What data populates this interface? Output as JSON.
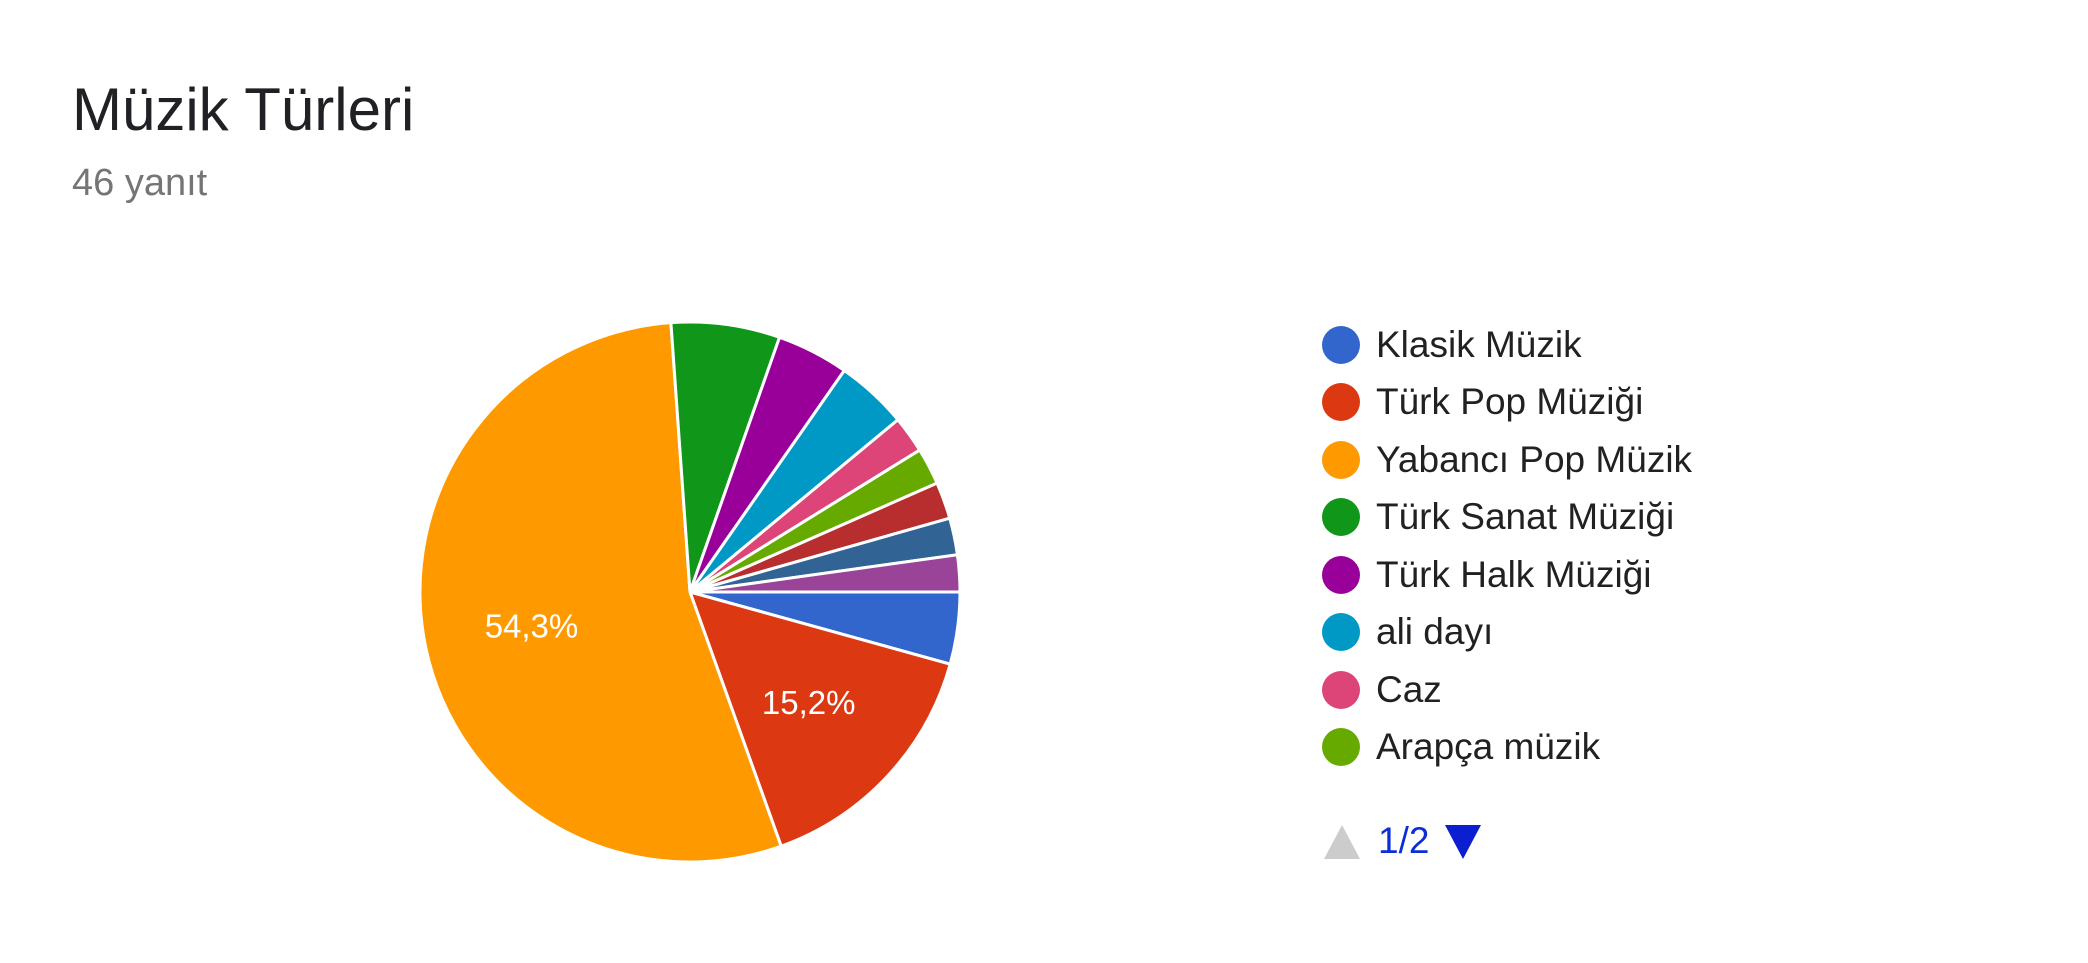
{
  "header": {
    "title": "Müzik Türleri",
    "response_count": "46 yanıt"
  },
  "chart_data": {
    "type": "pie",
    "title": "Müzik Türleri",
    "total_responses": 46,
    "slices": [
      {
        "name": "Klasik Müzik",
        "value": 4.3,
        "color": "#3366cc",
        "label": ""
      },
      {
        "name": "Türk Pop Müziği",
        "value": 15.2,
        "color": "#dc3912",
        "label": "15,2%"
      },
      {
        "name": "Yabancı Pop Müzik",
        "value": 54.3,
        "color": "#ff9900",
        "label": "54,3%"
      },
      {
        "name": "Türk Sanat Müziği",
        "value": 6.5,
        "color": "#109618",
        "label": ""
      },
      {
        "name": "Türk Halk Müziği",
        "value": 4.3,
        "color": "#990099",
        "label": ""
      },
      {
        "name": "ali dayı",
        "value": 4.3,
        "color": "#0099c6",
        "label": ""
      },
      {
        "name": "Caz",
        "value": 2.2,
        "color": "#dd4477",
        "label": ""
      },
      {
        "name": "Arapça müzik",
        "value": 2.2,
        "color": "#66aa00",
        "label": ""
      },
      {
        "value": 2.2,
        "color": "#b82e2e",
        "label": ""
      },
      {
        "value": 2.2,
        "color": "#316395",
        "label": ""
      },
      {
        "value": 2.2,
        "color": "#994499",
        "label": ""
      }
    ],
    "start_angle_deg": 90,
    "direction": "clockwise",
    "legend_placement": "right"
  },
  "pagination": {
    "label": "1/2",
    "prev_color": "#cccccc",
    "next_color": "#0b1fd1"
  }
}
